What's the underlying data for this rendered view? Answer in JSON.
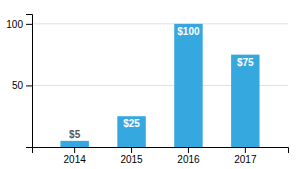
{
  "chart_data": {
    "type": "bar",
    "categories": [
      "2014",
      "2015",
      "2016",
      "2017"
    ],
    "values": [
      5,
      25,
      100,
      75
    ],
    "value_labels": [
      "$5",
      "$25",
      "$100",
      "$75"
    ],
    "data_labels": true,
    "color": "#35a8e0",
    "ylim": [
      0,
      108
    ],
    "yticks": [
      50,
      100
    ],
    "grid": true
  }
}
